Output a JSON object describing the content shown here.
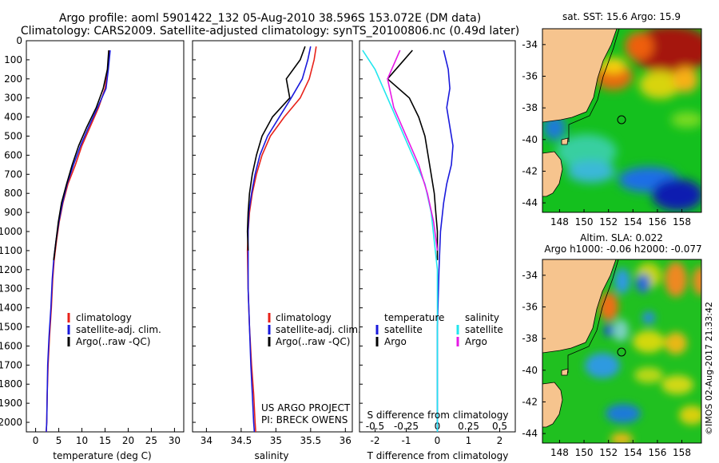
{
  "header": {
    "line1": "Argo profile: aoml 5901422_132 05-Aug-2010 38.596S 153.072E (DM data)",
    "line2": "Climatology: CARS2009. Satellite-adjusted climatology: synTS_20100806.nc (0.49d later)"
  },
  "colors": {
    "climatology": "#e8221a",
    "satellite": "#1a1adc",
    "argo": "#000000",
    "satellite_s": "#22e6ee",
    "argo_s": "#e61ae6",
    "land": "#f6c48e"
  },
  "chart_data": [
    {
      "type": "line",
      "name": "temperature-profile",
      "xlabel": "temperature (deg C)",
      "ylabel": "",
      "xlim": [
        -2,
        32
      ],
      "ylim": [
        2050,
        0
      ],
      "xticks": [
        "0",
        "5",
        "10",
        "15",
        "20",
        "25",
        "30"
      ],
      "yticks": [
        "0",
        "100",
        "200",
        "300",
        "400",
        "500",
        "600",
        "700",
        "800",
        "900",
        "1000",
        "1100",
        "1200",
        "1300",
        "1400",
        "1500",
        "1600",
        "1700",
        "1800",
        "1900",
        "2000"
      ],
      "legend": [
        "climatology",
        "satellite-adj. clim.",
        "Argo(..raw -QC)"
      ],
      "series": [
        {
          "name": "climatology",
          "x": [
            15.9,
            15.6,
            15.0,
            13.6,
            11.8,
            10.0,
            8.6,
            7.0,
            5.9,
            5.1,
            4.5,
            4.0,
            3.7,
            3.4,
            3.0,
            2.7,
            2.5,
            2.4,
            2.3
          ],
          "y": [
            50,
            150,
            250,
            350,
            450,
            550,
            650,
            750,
            850,
            950,
            1050,
            1150,
            1250,
            1400,
            1550,
            1700,
            1850,
            2000,
            2050
          ]
        },
        {
          "name": "satellite-adj. clim.",
          "x": [
            16.1,
            15.7,
            15.2,
            13.4,
            11.5,
            9.7,
            8.2,
            6.8,
            5.8,
            5.0,
            4.4,
            3.9,
            3.6,
            3.3,
            2.9,
            2.6,
            2.5,
            2.4,
            2.3
          ],
          "y": [
            50,
            150,
            250,
            350,
            450,
            550,
            650,
            750,
            850,
            950,
            1050,
            1150,
            1250,
            1400,
            1550,
            1700,
            1850,
            2000,
            2050
          ]
        },
        {
          "name": "Argo(..raw -QC)",
          "x": [
            15.8,
            15.5,
            14.6,
            13.1,
            11.1,
            9.3,
            7.9,
            6.7,
            5.6,
            4.9,
            4.4,
            3.9
          ],
          "y": [
            50,
            150,
            250,
            350,
            450,
            550,
            650,
            750,
            850,
            950,
            1050,
            1150
          ]
        }
      ]
    },
    {
      "type": "line",
      "name": "salinity-profile",
      "xlabel": "salinity",
      "ylabel": "",
      "xlim": [
        33.8,
        36.1
      ],
      "ylim": [
        2050,
        0
      ],
      "xticks": [
        "34",
        "34.5",
        "35",
        "35.5",
        "36"
      ],
      "legend": [
        "climatology",
        "satellite-adj. clim.",
        "Argo(..raw -QC)"
      ],
      "annotation": [
        "US ARGO PROJECT",
        "PI: BRECK OWENS"
      ],
      "series": [
        {
          "name": "climatology",
          "x": [
            35.58,
            35.55,
            35.48,
            35.35,
            35.12,
            34.92,
            34.8,
            34.72,
            34.66,
            34.62,
            34.6,
            34.59,
            34.6,
            34.62,
            34.65,
            34.68,
            34.7,
            34.71
          ],
          "y": [
            30,
            100,
            200,
            300,
            400,
            500,
            600,
            700,
            800,
            900,
            1000,
            1100,
            1300,
            1500,
            1700,
            1850,
            2000,
            2050
          ]
        },
        {
          "name": "satellite-adj. clim.",
          "x": [
            35.5,
            35.46,
            35.38,
            35.22,
            35.05,
            34.88,
            34.77,
            34.7,
            34.65,
            34.61,
            34.6,
            34.6,
            34.6,
            34.62,
            34.64,
            34.66,
            34.68,
            34.69
          ],
          "y": [
            30,
            100,
            200,
            300,
            400,
            500,
            600,
            700,
            800,
            900,
            1000,
            1100,
            1300,
            1500,
            1700,
            1850,
            2000,
            2050
          ]
        },
        {
          "name": "Argo(..raw -QC)",
          "x": [
            35.42,
            35.35,
            35.15,
            35.2,
            34.95,
            34.8,
            34.72,
            34.66,
            34.62,
            34.6,
            34.59,
            34.6
          ],
          "y": [
            30,
            100,
            200,
            300,
            400,
            500,
            600,
            700,
            800,
            900,
            1000,
            1100
          ]
        }
      ]
    },
    {
      "type": "line",
      "name": "difference-from-climatology",
      "xlabel": "T difference from climatology",
      "xlabel_top": "S difference from climatology",
      "xlim": [
        -2.5,
        2.5
      ],
      "ylim": [
        2050,
        0
      ],
      "xticks": [
        "-2",
        "-1",
        "0",
        "1",
        "2"
      ],
      "xticks_top": [
        "-0.5",
        "-0.25",
        "0",
        "0.25",
        "0.5"
      ],
      "legend_left": [
        "temperature",
        "satellite",
        "Argo"
      ],
      "legend_right": [
        "salinity",
        "satellite",
        "Argo"
      ],
      "series": [
        {
          "name": "temperature satellite",
          "x": [
            0.2,
            0.35,
            0.4,
            0.3,
            0.4,
            0.5,
            0.45,
            0.3,
            0.2,
            0.1,
            0.05,
            0.0,
            0.0,
            0.0
          ],
          "y": [
            50,
            150,
            250,
            350,
            450,
            550,
            650,
            750,
            850,
            1000,
            1200,
            1500,
            1800,
            2050
          ]
        },
        {
          "name": "temperature Argo",
          "x": [
            -0.8,
            -1.6,
            -0.9,
            -0.6,
            -0.4,
            -0.3,
            -0.2,
            -0.1,
            -0.05,
            0.0,
            0.0
          ],
          "y": [
            50,
            200,
            300,
            400,
            500,
            600,
            700,
            800,
            900,
            1000,
            1150
          ]
        },
        {
          "name": "salinity satellite",
          "x": [
            -0.6,
            -0.5,
            -0.4,
            -0.3,
            -0.2,
            -0.1,
            -0.05,
            0.0,
            0.0,
            0.0
          ],
          "y": [
            50,
            150,
            300,
            450,
            600,
            750,
            900,
            1200,
            1600,
            2050
          ]
        },
        {
          "name": "salinity Argo",
          "x": [
            -0.3,
            -0.4,
            -0.35,
            -0.25,
            -0.15,
            -0.08,
            -0.03,
            0.0
          ],
          "y": [
            50,
            200,
            350,
            500,
            650,
            800,
            950,
            1100
          ]
        }
      ]
    },
    {
      "type": "heatmap",
      "name": "sst-map",
      "title": "sat. SST: 15.6 Argo: 15.9",
      "xticks": [
        "148",
        "150",
        "152",
        "154",
        "156",
        "158"
      ],
      "yticks": [
        "-34",
        "-36",
        "-38",
        "-40",
        "-42",
        "-44"
      ],
      "lon_range": [
        146.6,
        159.6
      ],
      "lat_range": [
        -44.6,
        -33.0
      ],
      "marker": {
        "lon": 153.07,
        "lat": -38.6
      }
    },
    {
      "type": "heatmap",
      "name": "sla-map",
      "title": "Altim. SLA: 0.022",
      "subtitle": "Argo h1000: -0.06 h2000: -0.077",
      "xticks": [
        "148",
        "150",
        "152",
        "154",
        "156",
        "158"
      ],
      "yticks": [
        "-34",
        "-36",
        "-38",
        "-40",
        "-42",
        "-44"
      ],
      "lon_range": [
        146.6,
        159.6
      ],
      "lat_range": [
        -44.6,
        -33.0
      ],
      "marker": {
        "lon": 153.07,
        "lat": -38.6
      }
    }
  ],
  "footer_stamp": "©IMOS 02-Aug-2017 21:33:42"
}
